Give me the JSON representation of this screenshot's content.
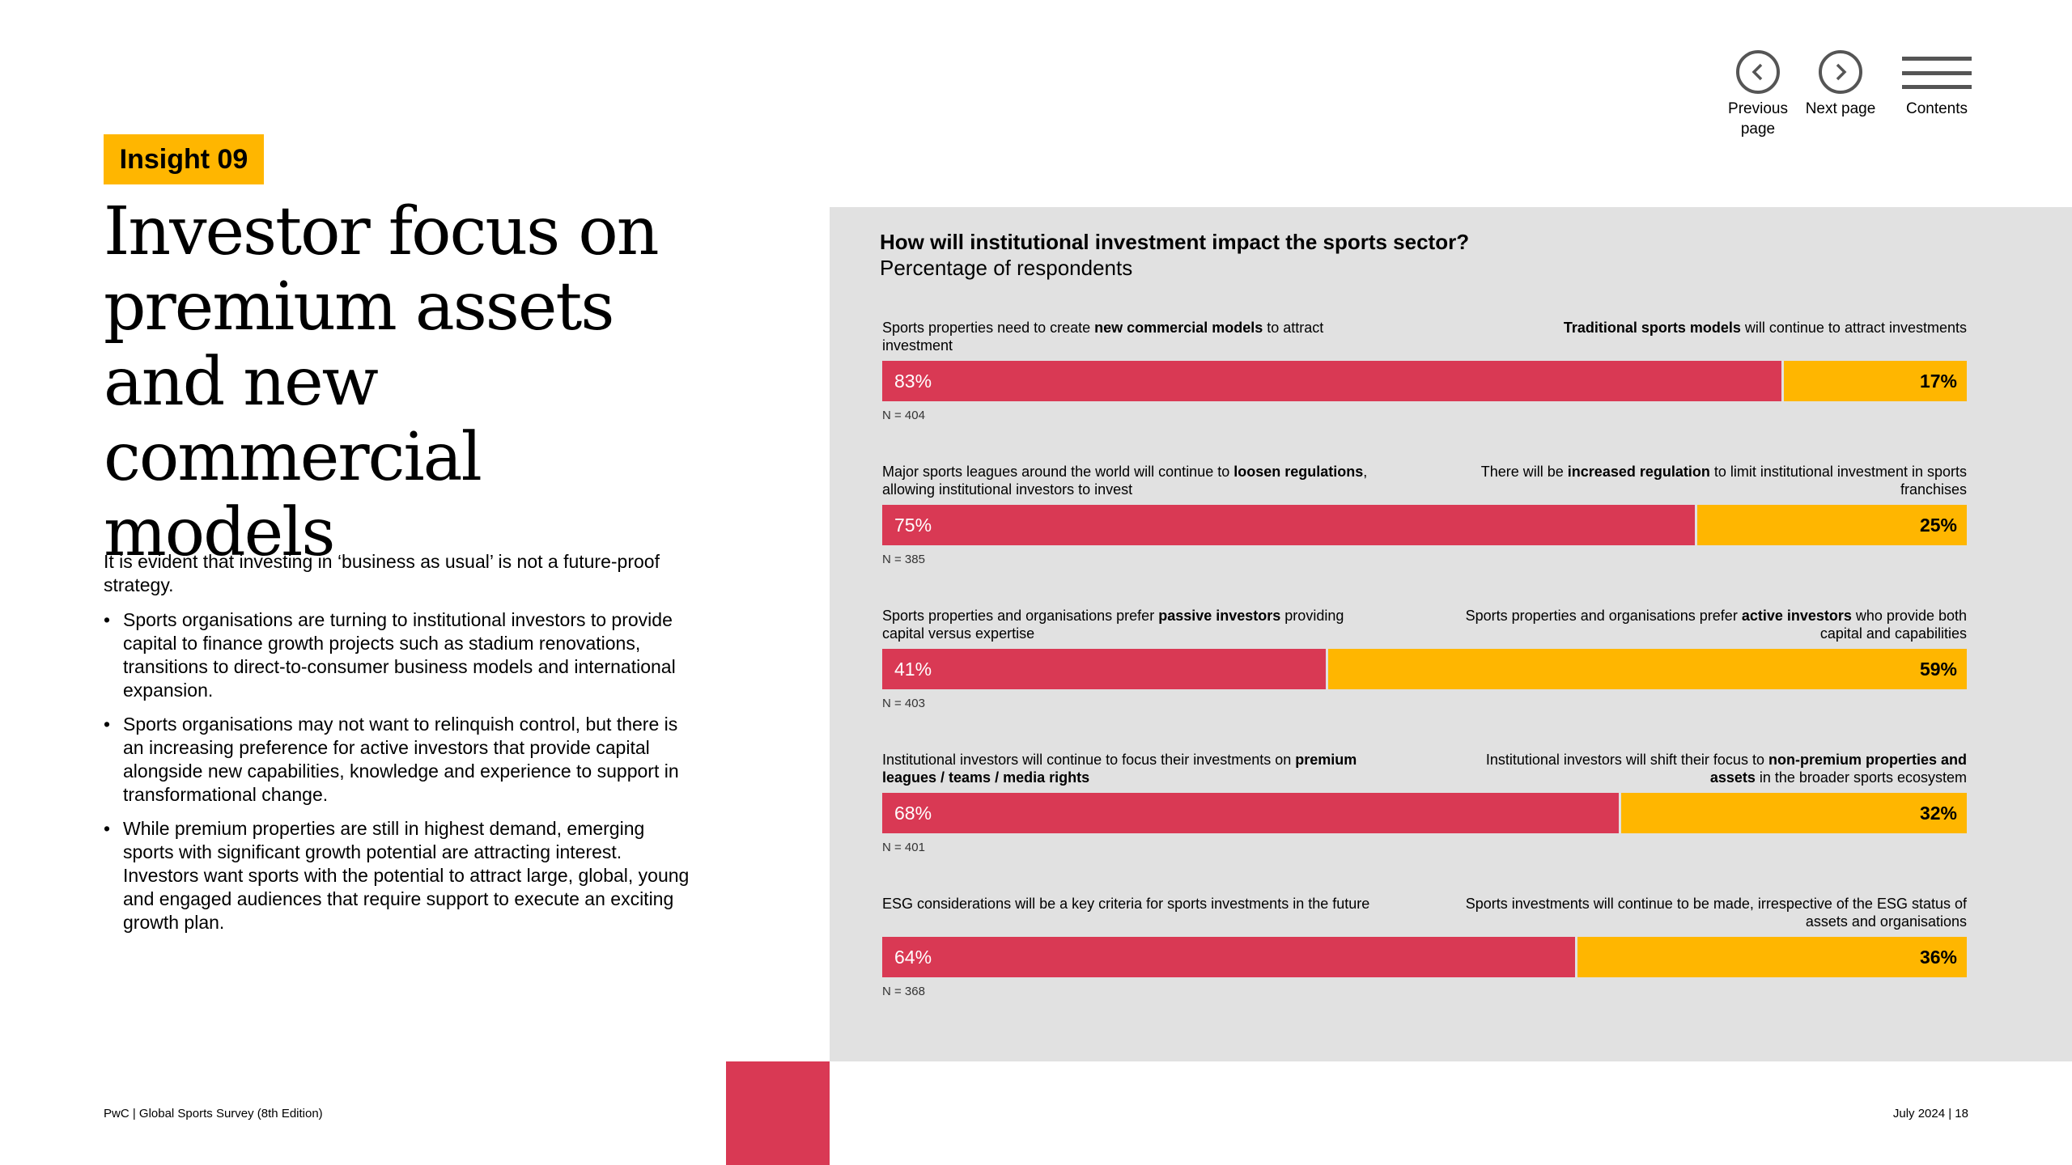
{
  "nav": {
    "previous_label": "Previous page",
    "next_label": "Next page",
    "contents_label": "Contents"
  },
  "insight_tag": "Insight 09",
  "headline": "Investor focus on premium assets and new commercial models",
  "intro": "It is evident that investing in ‘business as usual’ is not a future-proof strategy.",
  "bullets": [
    "Sports organisations are turning to institutional investors to provide capital to finance growth projects such as stadium renovations, transitions to direct-to-consumer business models and international expansion.",
    "Sports organisations may not want to relinquish control, but there is an increasing preference for active investors that provide capital alongside new capabilities, knowledge and experience to support in transformational change.",
    "While premium properties are still in highest demand, emerging sports with significant growth potential are attracting interest. Investors want sports with the potential to attract large, global, young and engaged audiences that require support to execute an exciting growth plan."
  ],
  "colors": {
    "accent_red": "#D93954",
    "accent_yellow": "#FFB600",
    "panel_grey": "#E1E1E1"
  },
  "chart_data": {
    "type": "bar",
    "stacked": true,
    "orientation": "horizontal",
    "title": "How will institutional investment impact the sports sector?",
    "subtitle": "Percentage of respondents",
    "rows": [
      {
        "left_html": "Sports properties need to create <b>new commercial models</b> to attract investment",
        "right_html": "<b>Traditional sports models</b> will continue to attract investments",
        "left_value": 83,
        "right_value": 17,
        "left_label": "83%",
        "right_label": "17%",
        "n_label": "N = 404"
      },
      {
        "left_html": "Major sports leagues around the world will continue to <b>loosen regulations</b>, allowing institutional investors to invest",
        "right_html": "There will be <b>increased regulation</b> to limit institutional investment in sports franchises",
        "left_value": 75,
        "right_value": 25,
        "left_label": "75%",
        "right_label": "25%",
        "n_label": "N = 385"
      },
      {
        "left_html": "Sports properties and organisations prefer <b>passive investors</b> providing capital versus expertise",
        "right_html": "Sports properties and organisations prefer <b>active investors</b> who provide both capital and capabilities",
        "left_value": 41,
        "right_value": 59,
        "left_label": "41%",
        "right_label": "59%",
        "n_label": "N = 403"
      },
      {
        "left_html": "Institutional investors will continue to focus their investments on <b>premium leagues / teams / media rights</b>",
        "right_html": "Institutional investors will shift their focus to <b>non-premium properties and assets</b> in the broader sports ecosystem",
        "left_value": 68,
        "right_value": 32,
        "left_label": "68%",
        "right_label": "32%",
        "n_label": "N = 401"
      },
      {
        "left_html": "ESG considerations will be a key criteria for sports investments in the future",
        "right_html": "Sports investments will continue to be made, irrespective of the ESG status of assets and organisations",
        "left_value": 64,
        "right_value": 36,
        "left_label": "64%",
        "right_label": "36%",
        "n_label": "N = 368"
      }
    ]
  },
  "footer": {
    "left": "PwC | Global Sports Survey (8th Edition)",
    "right": "July 2024 | 18"
  }
}
